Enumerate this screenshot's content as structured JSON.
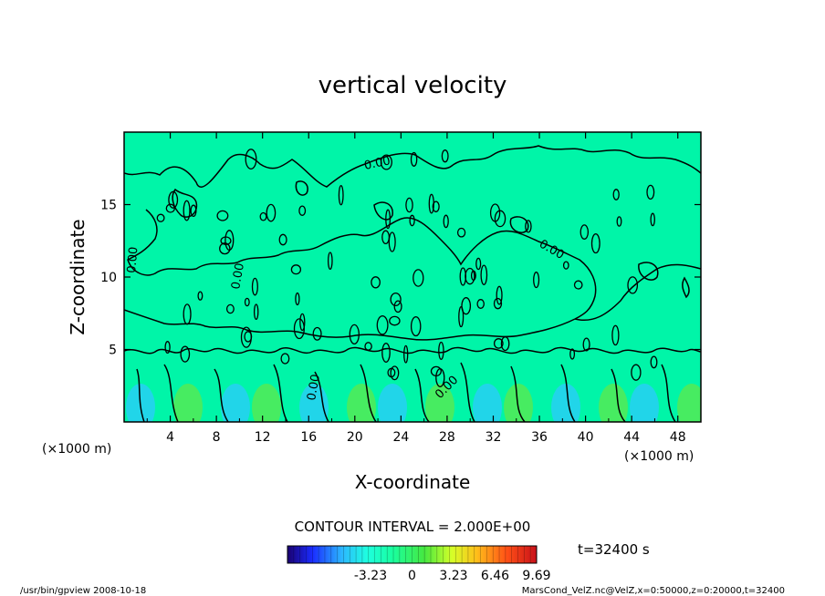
{
  "chart_data": {
    "type": "heatmap",
    "title": "vertical velocity",
    "xlabel": "X-coordinate",
    "ylabel": "Z-coordinate",
    "x_unit": "(×1000 m)",
    "y_unit": "(×1000 m)",
    "x_ticks": [
      "4",
      "8",
      "12",
      "16",
      "20",
      "24",
      "28",
      "32",
      "36",
      "40",
      "44",
      "48"
    ],
    "y_ticks": [
      "5",
      "10",
      "15"
    ],
    "xlim": [
      0,
      50
    ],
    "ylim": [
      0,
      20
    ],
    "contour_interval_text": "CONTOUR INTERVAL = 2.000E+00",
    "contour_labels": [
      "0.00",
      "0.00",
      "0.00",
      "0.00",
      "0.00",
      "0.00"
    ],
    "colorbar": {
      "ticks": [
        "-3.23",
        "0",
        "3.23",
        "6.46",
        "9.69"
      ],
      "range": [
        -9.69,
        9.69
      ]
    },
    "time_text": "t=32400 s",
    "footer_left": "/usr/bin/gpview   2008-10-18",
    "footer_right": "MarsCond_VelZ.nc@VelZ,x=0:50000,z=0:20000,t=32400",
    "colors": {
      "field": "#00f5a8",
      "low": "#2cc9ff",
      "high": "#5fe84a"
    }
  }
}
